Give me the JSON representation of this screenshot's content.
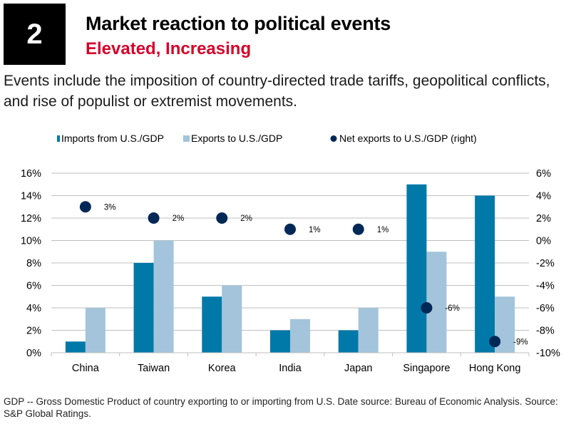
{
  "header": {
    "number": "2",
    "title": "Market reaction to political events",
    "subtitle": "Elevated, Increasing",
    "description": "Events include the imposition of country-directed trade tariffs, geopolitical conflicts, and rise of populist or extremist movements."
  },
  "footnote": "GDP -- Gross Domestic Product of country exporting to or importing from U.S. Date source: Bureau of Economic Analysis. Source: S&P Global Ratings.",
  "colors": {
    "imports": "#0079a8",
    "exports": "#a3c4da",
    "net": "#002856",
    "grid": "#bfbfbf",
    "subtitle": "#d6002a"
  },
  "chart_data": {
    "type": "bar",
    "title": "",
    "categories": [
      "China",
      "Taiwan",
      "Korea",
      "India",
      "Japan",
      "Singapore",
      "Hong Kong"
    ],
    "series": [
      {
        "name": "Imports from U.S./GDP",
        "type": "bar",
        "axis": "left",
        "values": [
          1,
          8,
          5,
          2,
          2,
          15,
          14
        ]
      },
      {
        "name": "Exports to U.S./GDP",
        "type": "bar",
        "axis": "left",
        "values": [
          4,
          10,
          6,
          3,
          4,
          9,
          5
        ]
      },
      {
        "name": "Net exports to U.S./GDP (right)",
        "type": "scatter",
        "axis": "right",
        "values": [
          3,
          2,
          2,
          1,
          1,
          -6,
          -9
        ],
        "labels": [
          "3%",
          "2%",
          "2%",
          "1%",
          "1%",
          "-6%",
          "-9%"
        ]
      }
    ],
    "left_axis": {
      "ylim": [
        0,
        16
      ],
      "ticks": [
        "0%",
        "2%",
        "4%",
        "6%",
        "8%",
        "10%",
        "12%",
        "14%",
        "16%"
      ]
    },
    "right_axis": {
      "ylim": [
        -10,
        6
      ],
      "ticks": [
        "-10%",
        "-8%",
        "-6%",
        "-4%",
        "-2%",
        "0%",
        "2%",
        "4%",
        "6%"
      ]
    },
    "xlabel": "",
    "ylabel": "",
    "grid": true,
    "legend_position": "top"
  }
}
